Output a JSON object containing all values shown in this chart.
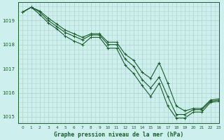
{
  "title": "Graphe pression niveau de la mer (hPa)",
  "background_color": "#cdf0ee",
  "grid_color": "#b0d8cc",
  "line_color": "#1a5c2a",
  "marker_color": "#1a5c2a",
  "xlim": [
    -0.5,
    23
  ],
  "ylim": [
    1014.75,
    1019.75
  ],
  "yticks": [
    1015,
    1016,
    1017,
    1018,
    1019
  ],
  "xticks": [
    0,
    1,
    2,
    3,
    4,
    5,
    6,
    7,
    8,
    9,
    10,
    11,
    12,
    13,
    14,
    15,
    16,
    17,
    18,
    19,
    20,
    21,
    22,
    23
  ],
  "series1_x": [
    0,
    1,
    2,
    3,
    4,
    5,
    6,
    7,
    8,
    9,
    10,
    11,
    12,
    13,
    14,
    15,
    16,
    17,
    18,
    19,
    20,
    21,
    22,
    23
  ],
  "series1_y": [
    1019.35,
    1019.55,
    1019.4,
    1019.1,
    1018.85,
    1018.6,
    1018.45,
    1018.3,
    1018.45,
    1018.45,
    1018.1,
    1018.1,
    1017.6,
    1017.35,
    1016.85,
    1016.6,
    1017.25,
    1016.4,
    1015.45,
    1015.25,
    1015.35,
    1015.35,
    1015.7,
    1015.75
  ],
  "series2_x": [
    0,
    1,
    2,
    3,
    4,
    5,
    6,
    7,
    8,
    9,
    10,
    11,
    12,
    13,
    14,
    15,
    16,
    17,
    18,
    19,
    20,
    21,
    22,
    23
  ],
  "series2_y": [
    1019.35,
    1019.55,
    1019.35,
    1019.0,
    1018.75,
    1018.5,
    1018.35,
    1018.2,
    1018.4,
    1018.4,
    1018.0,
    1018.0,
    1017.4,
    1017.1,
    1016.55,
    1016.2,
    1016.65,
    1015.85,
    1015.1,
    1015.1,
    1015.3,
    1015.3,
    1015.65,
    1015.7
  ],
  "series3_x": [
    0,
    1,
    2,
    3,
    4,
    5,
    6,
    7,
    8,
    9,
    10,
    11,
    12,
    13,
    14,
    15,
    16,
    17,
    18,
    19,
    20,
    21,
    22,
    23
  ],
  "series3_y": [
    1019.35,
    1019.55,
    1019.25,
    1018.9,
    1018.65,
    1018.35,
    1018.15,
    1018.0,
    1018.3,
    1018.3,
    1017.85,
    1017.85,
    1017.15,
    1016.8,
    1016.3,
    1015.85,
    1016.4,
    1015.45,
    1014.95,
    1014.95,
    1015.2,
    1015.2,
    1015.6,
    1015.65
  ]
}
